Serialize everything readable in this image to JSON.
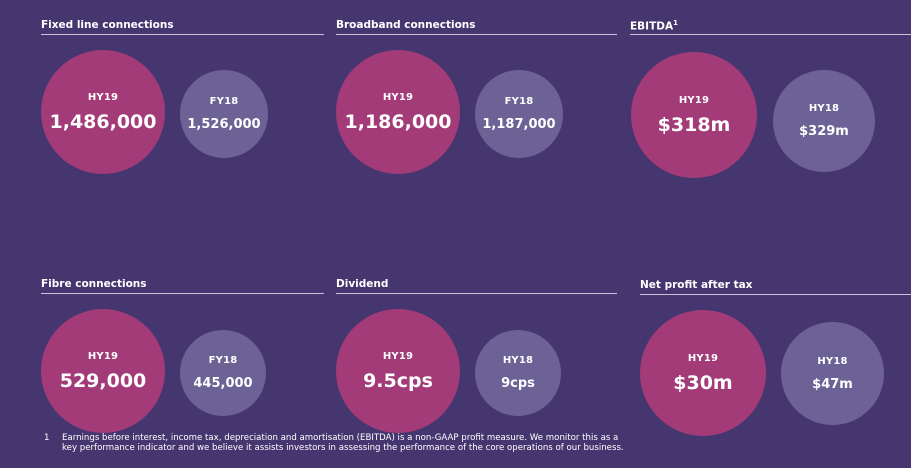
{
  "panels": [
    {
      "title": "Fixed line connections",
      "title_sup": "",
      "hy_label": "HY19",
      "hy_value": "1,486,000",
      "fy_label": "FY18",
      "fy_value": "1,526,000"
    },
    {
      "title": "Broadband connections",
      "title_sup": "",
      "hy_label": "HY19",
      "hy_value": "1,186,000",
      "fy_label": "FY18",
      "fy_value": "1,187,000"
    },
    {
      "title": "EBITDA",
      "title_sup": "1",
      "hy_label": "HY19",
      "hy_value": "$318m",
      "fy_label": "HY18",
      "fy_value": "$329m"
    },
    {
      "title": "Fibre connections",
      "title_sup": "",
      "hy_label": "HY19",
      "hy_value": "529,000",
      "fy_label": "FY18",
      "fy_value": "445,000"
    },
    {
      "title": "Dividend",
      "title_sup": "",
      "hy_label": "HY19",
      "hy_value": "9.5cps",
      "fy_label": "HY18",
      "fy_value": "9cps"
    },
    {
      "title": "Net profit after tax",
      "title_sup": "",
      "hy_label": "HY19",
      "hy_value": "$30m",
      "fy_label": "HY18",
      "fy_value": "$47m"
    }
  ],
  "footnote": {
    "number": "1",
    "line1": "Earnings before interest, income tax, depreciation and amortisation (EBITDA) is a non-GAAP profit measure. We monitor this as a",
    "line2": "key performance indicator and we believe it assists investors in assessing the performance of the core operations of our business."
  },
  "colors": {
    "background": "#463670",
    "current_period_circle": "#a23b78",
    "comparison_circle": "#6d6296",
    "rule": "#c9c3da"
  }
}
